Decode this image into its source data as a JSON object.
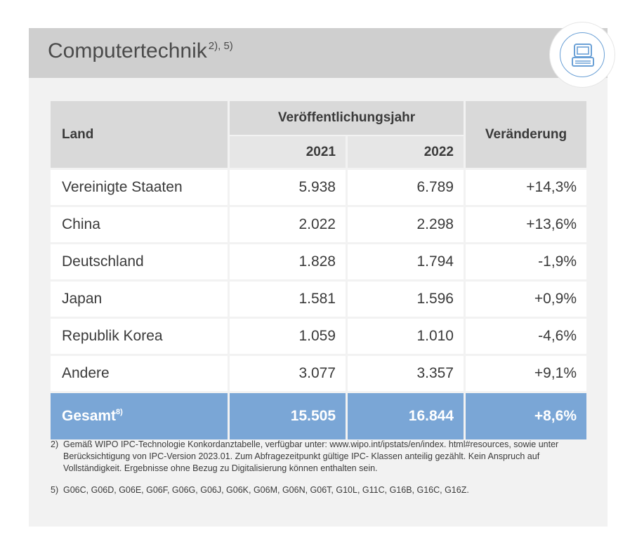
{
  "title": "Computertechnik",
  "title_footnotes": "2), 5)",
  "icon": "computer-icon",
  "colors": {
    "header_bg": "#cfcfcf",
    "accent": "#7aa6d6",
    "card_bg": "#f2f2f2"
  },
  "table": {
    "col_land": "Land",
    "col_year_group": "Veröffentlichungsjahr",
    "col_y1": "2021",
    "col_y2": "2022",
    "col_change": "Veränderung",
    "rows": [
      {
        "land": "Vereinigte Staaten",
        "y2021": "5.938",
        "y2022": "6.789",
        "change": "+14,3%"
      },
      {
        "land": "China",
        "y2021": "2.022",
        "y2022": "2.298",
        "change": "+13,6%"
      },
      {
        "land": "Deutschland",
        "y2021": "1.828",
        "y2022": "1.794",
        "change": "-1,9%"
      },
      {
        "land": "Japan",
        "y2021": "1.581",
        "y2022": "1.596",
        "change": "+0,9%"
      },
      {
        "land": "Republik Korea",
        "y2021": "1.059",
        "y2022": "1.010",
        "change": "-4,6%"
      },
      {
        "land": "Andere",
        "y2021": "3.077",
        "y2022": "3.357",
        "change": "+9,1%"
      }
    ],
    "total": {
      "land": "Gesamt",
      "footnote": "8)",
      "y2021": "15.505",
      "y2022": "16.844",
      "change": "+8,6%"
    }
  },
  "footnotes": [
    {
      "num": "2)",
      "text": "Gemäß WIPO IPC-Technologie Konkordanztabelle, verfügbar unter: www.wipo.int/ipstats/en/index. html#resources, sowie unter Berücksichtigung von IPC-Version 2023.01. Zum Abfragezeitpunkt gültige IPC- Klassen anteilig gezählt. Kein Anspruch auf Vollständigkeit. Ergebnisse ohne Bezug zu Digitalisierung können enthalten sein."
    },
    {
      "num": "5)",
      "text": "G06C, G06D, G06E, G06F, G06G, G06J, G06K, G06M, G06N, G06T, G10L, G11C, G16B, G16C, G16Z."
    }
  ]
}
